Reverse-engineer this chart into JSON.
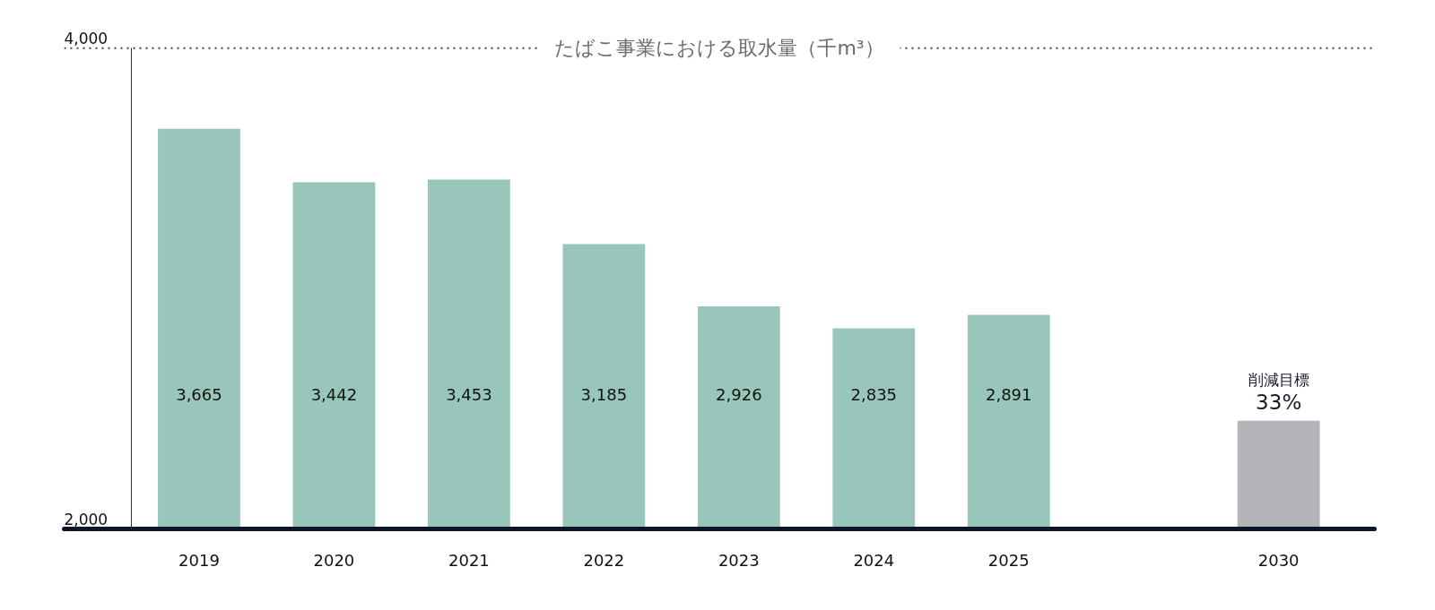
{
  "chart_data": {
    "type": "bar",
    "title": "たばこ事業における取水量（千m³）",
    "categories": [
      "2019",
      "2020",
      "2021",
      "2022",
      "2023",
      "2024",
      "2025",
      null,
      "2030"
    ],
    "values": [
      3665,
      3442,
      3453,
      3185,
      2926,
      2835,
      2891,
      null,
      2450
    ],
    "colors": [
      "#99c6ba",
      "#99c6ba",
      "#99c6ba",
      "#99c6ba",
      "#99c6ba",
      "#99c6ba",
      "#99c6ba",
      null,
      "#b5b4b9"
    ],
    "value_labels": [
      "3,665",
      "3,442",
      "3,453",
      "3,185",
      "2,926",
      "2,835",
      "2,891",
      null,
      null
    ],
    "ylim": [
      2000,
      4000
    ],
    "yticks": [
      {
        "value": 2000,
        "label": "2,000"
      },
      {
        "value": 4000,
        "label": "4,000"
      }
    ],
    "ref_lines": [
      {
        "axis": "y",
        "value": 4000,
        "color": "#444444",
        "line_style": "dotted"
      }
    ],
    "annotations": [
      "削減目標",
      "33%"
    ]
  }
}
